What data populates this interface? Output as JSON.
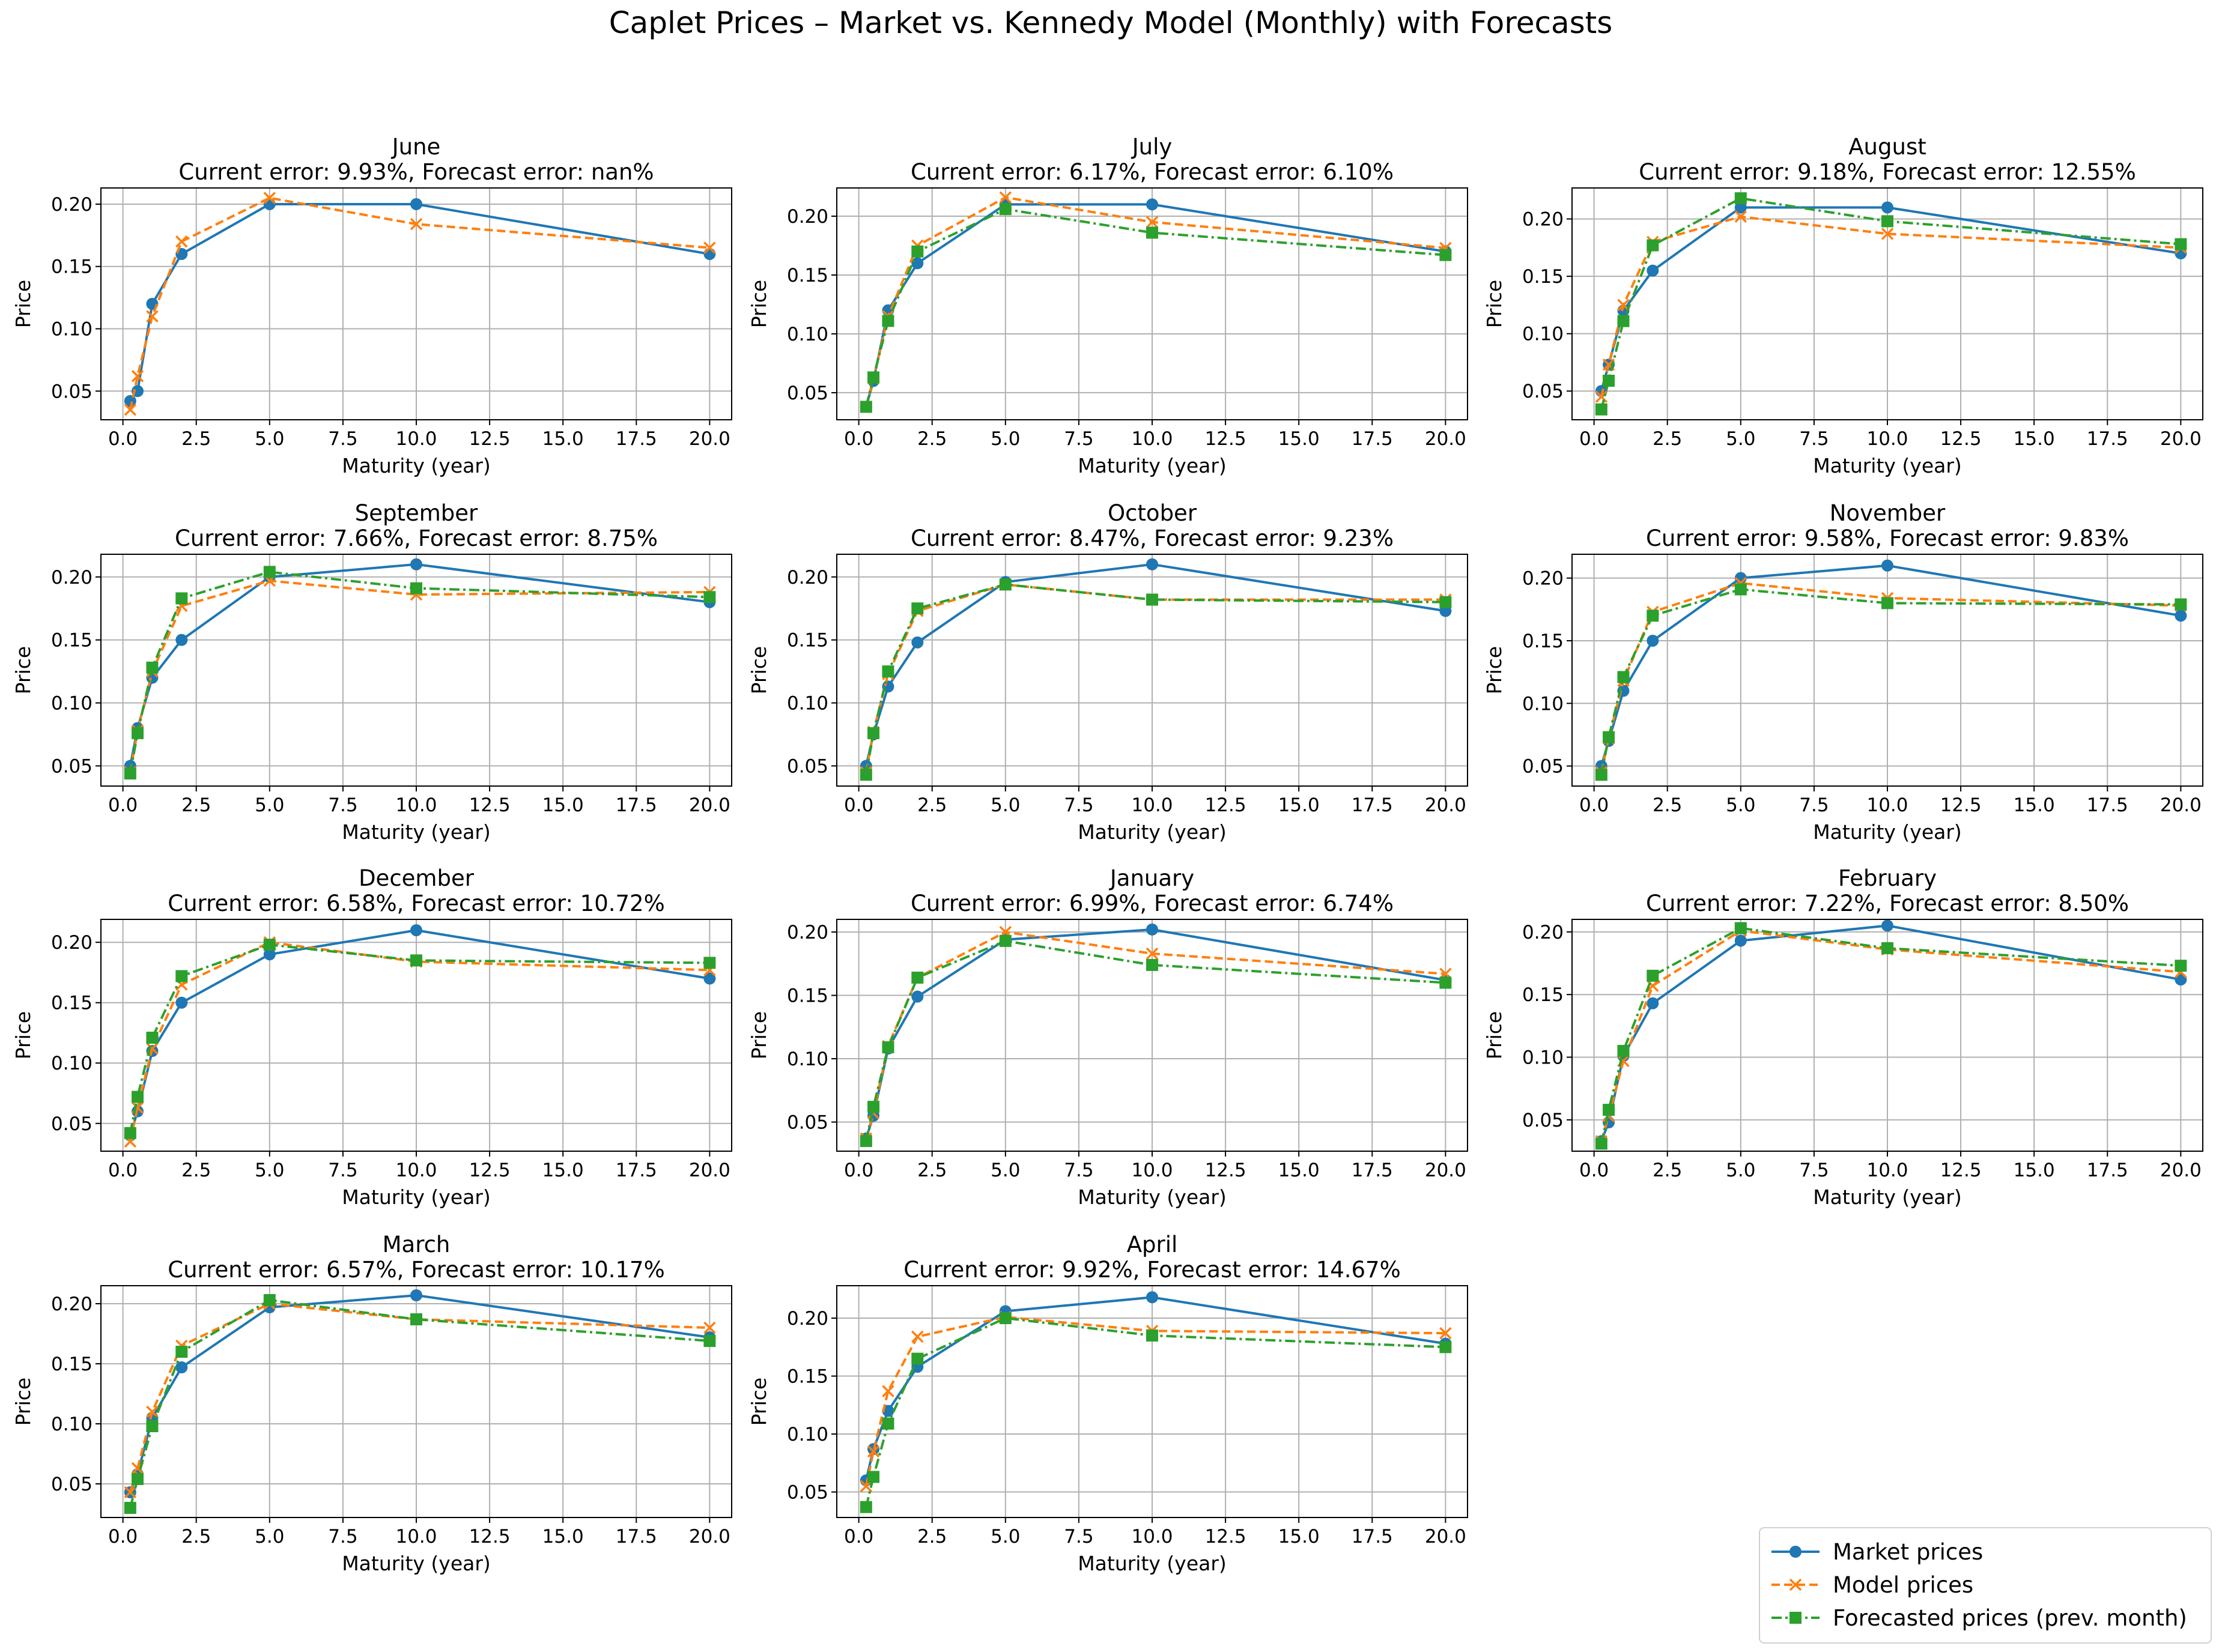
{
  "figure": {
    "title": "Caplet Prices – Market vs. Kennedy Model (Monthly) with Forecasts"
  },
  "colors": {
    "market": "#1f77b4",
    "model": "#ff7f0e",
    "forecast": "#2ca02c",
    "grid": "#b0b0b0"
  },
  "legend": {
    "placement": "lower-right",
    "entries": [
      {
        "series": "market",
        "label": "Market prices",
        "marker": "circle",
        "dash": "solid"
      },
      {
        "series": "model",
        "label": "Model prices",
        "marker": "x",
        "dash": "dashed"
      },
      {
        "series": "forecast",
        "label": "Forecasted prices (prev. month)",
        "marker": "square",
        "dash": "dashdot"
      }
    ]
  },
  "chart_data": [
    {
      "type": "line",
      "title": "June",
      "subtitle": "Current error: 9.93%, Forecast error: nan%",
      "xlabel": "Maturity (year)",
      "ylabel": "Price",
      "xlim": [
        -0.75,
        20.75
      ],
      "ylim": [
        0.027,
        0.213
      ],
      "xticks": [
        "0.0",
        "2.5",
        "5.0",
        "7.5",
        "10.0",
        "12.5",
        "15.0",
        "17.5",
        "20.0"
      ],
      "yticks": [
        "0.05",
        "0.10",
        "0.15",
        "0.20"
      ],
      "x": [
        0.25,
        0.5,
        1,
        2,
        5,
        10,
        20
      ],
      "series": [
        {
          "key": "market",
          "values": [
            0.042,
            0.05,
            0.12,
            0.16,
            0.2,
            0.2,
            0.16
          ]
        },
        {
          "key": "model",
          "values": [
            0.035,
            0.062,
            0.11,
            0.17,
            0.205,
            0.184,
            0.165
          ]
        }
      ]
    },
    {
      "type": "line",
      "title": "July",
      "subtitle": "Current error: 6.17%, Forecast error: 6.10%",
      "xlabel": "Maturity (year)",
      "ylabel": "Price",
      "xlim": [
        -0.75,
        20.75
      ],
      "ylim": [
        0.027,
        0.224
      ],
      "xticks": [
        "0.0",
        "2.5",
        "5.0",
        "7.5",
        "10.0",
        "12.5",
        "15.0",
        "17.5",
        "20.0"
      ],
      "yticks": [
        "0.05",
        "0.10",
        "0.15",
        "0.20"
      ],
      "x": [
        0.25,
        0.5,
        1,
        2,
        5,
        10,
        20
      ],
      "series": [
        {
          "key": "market",
          "values": [
            0.038,
            0.06,
            0.12,
            0.16,
            0.21,
            0.21,
            0.17
          ]
        },
        {
          "key": "model",
          "values": [
            0.038,
            0.062,
            0.115,
            0.175,
            0.216,
            0.195,
            0.173
          ]
        },
        {
          "key": "forecast",
          "values": [
            0.038,
            0.063,
            0.111,
            0.17,
            0.206,
            0.186,
            0.167
          ]
        }
      ]
    },
    {
      "type": "line",
      "title": "August",
      "subtitle": "Current error: 9.18%, Forecast error: 12.55%",
      "xlabel": "Maturity (year)",
      "ylabel": "Price",
      "xlim": [
        -0.75,
        20.75
      ],
      "ylim": [
        0.025,
        0.227
      ],
      "xticks": [
        "0.0",
        "2.5",
        "5.0",
        "7.5",
        "10.0",
        "12.5",
        "15.0",
        "17.5",
        "20.0"
      ],
      "yticks": [
        "0.05",
        "0.10",
        "0.15",
        "0.20"
      ],
      "x": [
        0.25,
        0.5,
        1,
        2,
        5,
        10,
        20
      ],
      "series": [
        {
          "key": "market",
          "values": [
            0.05,
            0.073,
            0.12,
            0.155,
            0.21,
            0.21,
            0.17
          ]
        },
        {
          "key": "model",
          "values": [
            0.045,
            0.073,
            0.125,
            0.18,
            0.202,
            0.187,
            0.175
          ]
        },
        {
          "key": "forecast",
          "values": [
            0.034,
            0.059,
            0.111,
            0.177,
            0.218,
            0.198,
            0.178
          ]
        }
      ]
    },
    {
      "type": "line",
      "title": "September",
      "subtitle": "Current error: 7.66%, Forecast error: 8.75%",
      "xlabel": "Maturity (year)",
      "ylabel": "Price",
      "xlim": [
        -0.75,
        20.75
      ],
      "ylim": [
        0.034,
        0.218
      ],
      "xticks": [
        "0.0",
        "2.5",
        "5.0",
        "7.5",
        "10.0",
        "12.5",
        "15.0",
        "17.5",
        "20.0"
      ],
      "yticks": [
        "0.05",
        "0.10",
        "0.15",
        "0.20"
      ],
      "x": [
        0.25,
        0.5,
        1,
        2,
        5,
        10,
        20
      ],
      "series": [
        {
          "key": "market",
          "values": [
            0.05,
            0.08,
            0.12,
            0.15,
            0.2,
            0.21,
            0.18
          ]
        },
        {
          "key": "model",
          "values": [
            0.045,
            0.078,
            0.125,
            0.177,
            0.197,
            0.186,
            0.188
          ]
        },
        {
          "key": "forecast",
          "values": [
            0.044,
            0.076,
            0.128,
            0.183,
            0.204,
            0.191,
            0.184
          ]
        }
      ]
    },
    {
      "type": "line",
      "title": "October",
      "subtitle": "Current error: 8.47%, Forecast error: 9.23%",
      "xlabel": "Maturity (year)",
      "ylabel": "Price",
      "xlim": [
        -0.75,
        20.75
      ],
      "ylim": [
        0.034,
        0.218
      ],
      "xticks": [
        "0.0",
        "2.5",
        "5.0",
        "7.5",
        "10.0",
        "12.5",
        "15.0",
        "17.5",
        "20.0"
      ],
      "yticks": [
        "0.05",
        "0.10",
        "0.15",
        "0.20"
      ],
      "x": [
        0.25,
        0.5,
        1,
        2,
        5,
        10,
        20
      ],
      "series": [
        {
          "key": "market",
          "values": [
            0.05,
            0.075,
            0.113,
            0.148,
            0.196,
            0.21,
            0.173
          ]
        },
        {
          "key": "model",
          "values": [
            0.045,
            0.077,
            0.123,
            0.173,
            0.194,
            0.182,
            0.182
          ]
        },
        {
          "key": "forecast",
          "values": [
            0.043,
            0.076,
            0.125,
            0.175,
            0.194,
            0.182,
            0.18
          ]
        }
      ]
    },
    {
      "type": "line",
      "title": "November",
      "subtitle": "Current error: 9.58%, Forecast error: 9.83%",
      "xlabel": "Maturity (year)",
      "ylabel": "Price",
      "xlim": [
        -0.75,
        20.75
      ],
      "ylim": [
        0.034,
        0.219
      ],
      "xticks": [
        "0.0",
        "2.5",
        "5.0",
        "7.5",
        "10.0",
        "12.5",
        "15.0",
        "17.5",
        "20.0"
      ],
      "yticks": [
        "0.05",
        "0.10",
        "0.15",
        "0.20"
      ],
      "x": [
        0.25,
        0.5,
        1,
        2,
        5,
        10,
        20
      ],
      "series": [
        {
          "key": "market",
          "values": [
            0.05,
            0.07,
            0.11,
            0.15,
            0.2,
            0.21,
            0.17
          ]
        },
        {
          "key": "model",
          "values": [
            0.045,
            0.072,
            0.118,
            0.173,
            0.196,
            0.184,
            0.178
          ]
        },
        {
          "key": "forecast",
          "values": [
            0.043,
            0.073,
            0.121,
            0.17,
            0.191,
            0.18,
            0.179
          ]
        }
      ]
    },
    {
      "type": "line",
      "title": "December",
      "subtitle": "Current error: 6.58%, Forecast error: 10.72%",
      "xlabel": "Maturity (year)",
      "ylabel": "Price",
      "xlim": [
        -0.75,
        20.75
      ],
      "ylim": [
        0.027,
        0.219
      ],
      "xticks": [
        "0.0",
        "2.5",
        "5.0",
        "7.5",
        "10.0",
        "12.5",
        "15.0",
        "17.5",
        "20.0"
      ],
      "yticks": [
        "0.05",
        "0.10",
        "0.15",
        "0.20"
      ],
      "x": [
        0.25,
        0.5,
        1,
        2,
        5,
        10,
        20
      ],
      "series": [
        {
          "key": "market",
          "values": [
            0.04,
            0.06,
            0.11,
            0.15,
            0.19,
            0.21,
            0.17
          ]
        },
        {
          "key": "model",
          "values": [
            0.035,
            0.063,
            0.112,
            0.165,
            0.2,
            0.184,
            0.177
          ]
        },
        {
          "key": "forecast",
          "values": [
            0.042,
            0.072,
            0.121,
            0.172,
            0.198,
            0.185,
            0.183
          ]
        }
      ]
    },
    {
      "type": "line",
      "title": "January",
      "subtitle": "Current error: 6.99%, Forecast error: 6.74%",
      "xlabel": "Maturity (year)",
      "ylabel": "Price",
      "xlim": [
        -0.75,
        20.75
      ],
      "ylim": [
        0.027,
        0.21
      ],
      "xticks": [
        "0.0",
        "2.5",
        "5.0",
        "7.5",
        "10.0",
        "12.5",
        "15.0",
        "17.5",
        "20.0"
      ],
      "yticks": [
        "0.05",
        "0.10",
        "0.15",
        "0.20"
      ],
      "x": [
        0.25,
        0.5,
        1,
        2,
        5,
        10,
        20
      ],
      "series": [
        {
          "key": "market",
          "values": [
            0.037,
            0.055,
            0.108,
            0.149,
            0.194,
            0.202,
            0.162
          ]
        },
        {
          "key": "model",
          "values": [
            0.037,
            0.057,
            0.11,
            0.164,
            0.2,
            0.183,
            0.167
          ]
        },
        {
          "key": "forecast",
          "values": [
            0.035,
            0.062,
            0.109,
            0.164,
            0.193,
            0.174,
            0.16
          ]
        }
      ]
    },
    {
      "type": "line",
      "title": "February",
      "subtitle": "Current error: 7.22%, Forecast error: 8.50%",
      "xlabel": "Maturity (year)",
      "ylabel": "Price",
      "xlim": [
        -0.75,
        20.75
      ],
      "ylim": [
        0.025,
        0.21
      ],
      "xticks": [
        "0.0",
        "2.5",
        "5.0",
        "7.5",
        "10.0",
        "12.5",
        "15.0",
        "17.5",
        "20.0"
      ],
      "yticks": [
        "0.05",
        "0.10",
        "0.15",
        "0.20"
      ],
      "x": [
        0.25,
        0.5,
        1,
        2,
        5,
        10,
        20
      ],
      "series": [
        {
          "key": "market",
          "values": [
            0.033,
            0.048,
            0.101,
            0.143,
            0.193,
            0.205,
            0.162
          ]
        },
        {
          "key": "model",
          "values": [
            0.033,
            0.053,
            0.097,
            0.157,
            0.201,
            0.186,
            0.168
          ]
        },
        {
          "key": "forecast",
          "values": [
            0.031,
            0.058,
            0.105,
            0.165,
            0.203,
            0.187,
            0.173
          ]
        }
      ]
    },
    {
      "type": "line",
      "title": "March",
      "subtitle": "Current error: 6.57%, Forecast error: 10.17%",
      "xlabel": "Maturity (year)",
      "ylabel": "Price",
      "xlim": [
        -0.75,
        20.75
      ],
      "ylim": [
        0.022,
        0.215
      ],
      "xticks": [
        "0.0",
        "2.5",
        "5.0",
        "7.5",
        "10.0",
        "12.5",
        "15.0",
        "17.5",
        "20.0"
      ],
      "yticks": [
        "0.05",
        "0.10",
        "0.15",
        "0.20"
      ],
      "x": [
        0.25,
        0.5,
        1,
        2,
        5,
        10,
        20
      ],
      "series": [
        {
          "key": "market",
          "values": [
            0.043,
            0.058,
            0.105,
            0.147,
            0.197,
            0.207,
            0.172
          ]
        },
        {
          "key": "model",
          "values": [
            0.043,
            0.063,
            0.11,
            0.165,
            0.2,
            0.187,
            0.18
          ]
        },
        {
          "key": "forecast",
          "values": [
            0.03,
            0.054,
            0.098,
            0.16,
            0.203,
            0.187,
            0.169
          ]
        }
      ]
    },
    {
      "type": "line",
      "title": "April",
      "subtitle": "Current error: 9.92%, Forecast error: 14.67%",
      "xlabel": "Maturity (year)",
      "ylabel": "Price",
      "xlim": [
        -0.75,
        20.75
      ],
      "ylim": [
        0.028,
        0.228
      ],
      "xticks": [
        "0.0",
        "2.5",
        "5.0",
        "7.5",
        "10.0",
        "12.5",
        "15.0",
        "17.5",
        "20.0"
      ],
      "yticks": [
        "0.05",
        "0.10",
        "0.15",
        "0.20"
      ],
      "x": [
        0.25,
        0.5,
        1,
        2,
        5,
        10,
        20
      ],
      "series": [
        {
          "key": "market",
          "values": [
            0.06,
            0.087,
            0.12,
            0.158,
            0.206,
            0.218,
            0.178
          ]
        },
        {
          "key": "model",
          "values": [
            0.055,
            0.085,
            0.137,
            0.184,
            0.201,
            0.189,
            0.187
          ]
        },
        {
          "key": "forecast",
          "values": [
            0.037,
            0.063,
            0.109,
            0.165,
            0.2,
            0.185,
            0.175
          ]
        }
      ]
    }
  ]
}
